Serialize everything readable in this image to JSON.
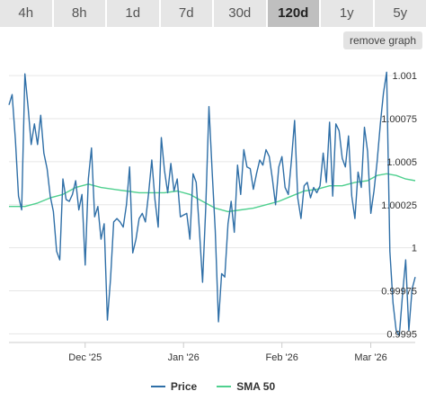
{
  "tabs": [
    {
      "label": "4h"
    },
    {
      "label": "8h"
    },
    {
      "label": "1d"
    },
    {
      "label": "7d"
    },
    {
      "label": "30d"
    },
    {
      "label": "120d",
      "active": true
    },
    {
      "label": "1y"
    },
    {
      "label": "5y"
    }
  ],
  "remove_graph_label": "remove graph",
  "colors": {
    "price": "#2f6fa7",
    "sma": "#4fd08f",
    "grid": "#e6e6e6",
    "axis": "#cccccc",
    "tab_active": "#bfbfbf"
  },
  "chart_data": {
    "type": "line",
    "title": "",
    "xlabel": "",
    "ylabel": "",
    "ylim": [
      0.99945,
      1.0011
    ],
    "y_ticks": [
      {
        "value": 0.9995,
        "label": "0.9995"
      },
      {
        "value": 0.99975,
        "label": "0.99975"
      },
      {
        "value": 1.0,
        "label": "1"
      },
      {
        "value": 1.00025,
        "label": "1.00025"
      },
      {
        "value": 1.0005,
        "label": "1.0005"
      },
      {
        "value": 1.00075,
        "label": "1.00075"
      },
      {
        "value": 1.001,
        "label": "1.001"
      }
    ],
    "x_range": [
      "2025-11-07",
      "2026-03-15"
    ],
    "x_ticks": [
      {
        "date": "2025-12-01",
        "label": "Dec '25"
      },
      {
        "date": "2026-01-01",
        "label": "Jan '26"
      },
      {
        "date": "2026-02-01",
        "label": "Feb '26"
      },
      {
        "date": "2026-03-01",
        "label": "Mar '26"
      }
    ],
    "grid": true,
    "legend_position": "bottom-center",
    "series": [
      {
        "name": "Price",
        "points": [
          [
            "2025-11-07",
            1.00083
          ],
          [
            "2025-11-08",
            1.00089
          ],
          [
            "2025-11-09",
            1.00063
          ],
          [
            "2025-11-10",
            1.0003
          ],
          [
            "2025-11-11",
            1.00022
          ],
          [
            "2025-11-12",
            1.00101
          ],
          [
            "2025-11-13",
            1.00082
          ],
          [
            "2025-11-14",
            1.0006
          ],
          [
            "2025-11-15",
            1.00072
          ],
          [
            "2025-11-16",
            1.0006
          ],
          [
            "2025-11-17",
            1.00077
          ],
          [
            "2025-11-18",
            1.00055
          ],
          [
            "2025-11-19",
            1.00046
          ],
          [
            "2025-11-20",
            1.0003
          ],
          [
            "2025-11-21",
            1.00021
          ],
          [
            "2025-11-22",
            0.99998
          ],
          [
            "2025-11-23",
            0.99993
          ],
          [
            "2025-11-24",
            1.0004
          ],
          [
            "2025-11-25",
            1.00028
          ],
          [
            "2025-11-26",
            1.00027
          ],
          [
            "2025-11-27",
            1.00031
          ],
          [
            "2025-11-28",
            1.00039
          ],
          [
            "2025-11-29",
            1.00022
          ],
          [
            "2025-11-30",
            1.00031
          ],
          [
            "2025-12-01",
            0.9999
          ],
          [
            "2025-12-02",
            1.0004
          ],
          [
            "2025-12-03",
            1.00058
          ],
          [
            "2025-12-04",
            1.00018
          ],
          [
            "2025-12-05",
            1.00024
          ],
          [
            "2025-12-06",
            1.00005
          ],
          [
            "2025-12-07",
            1.00014
          ],
          [
            "2025-12-08",
            0.99958
          ],
          [
            "2025-12-09",
            0.99982
          ],
          [
            "2025-12-10",
            1.00015
          ],
          [
            "2025-12-11",
            1.00017
          ],
          [
            "2025-12-12",
            1.00015
          ],
          [
            "2025-12-13",
            1.00012
          ],
          [
            "2025-12-14",
            1.00025
          ],
          [
            "2025-12-15",
            1.00047
          ],
          [
            "2025-12-16",
            0.99997
          ],
          [
            "2025-12-17",
            1.00005
          ],
          [
            "2025-12-18",
            1.00017
          ],
          [
            "2025-12-19",
            1.0002
          ],
          [
            "2025-12-20",
            1.00015
          ],
          [
            "2025-12-21",
            1.00032
          ],
          [
            "2025-12-22",
            1.00051
          ],
          [
            "2025-12-23",
            1.00028
          ],
          [
            "2025-12-24",
            1.00012
          ],
          [
            "2025-12-25",
            1.00064
          ],
          [
            "2025-12-26",
            1.00045
          ],
          [
            "2025-12-27",
            1.00032
          ],
          [
            "2025-12-28",
            1.00049
          ],
          [
            "2025-12-29",
            1.00033
          ],
          [
            "2025-12-30",
            1.0004
          ],
          [
            "2025-12-31",
            1.00018
          ],
          [
            "2026-01-01",
            1.00019
          ],
          [
            "2026-01-02",
            1.0002
          ],
          [
            "2026-01-03",
            1.00005
          ],
          [
            "2026-01-04",
            1.00043
          ],
          [
            "2026-01-05",
            1.00038
          ],
          [
            "2026-01-06",
            1.0001
          ],
          [
            "2026-01-07",
            0.9998
          ],
          [
            "2026-01-08",
            1.00023
          ],
          [
            "2026-01-09",
            1.00082
          ],
          [
            "2026-01-10",
            1.00045
          ],
          [
            "2026-01-11",
            1.0001
          ],
          [
            "2026-01-12",
            0.99957
          ],
          [
            "2026-01-13",
            0.99985
          ],
          [
            "2026-01-14",
            0.99983
          ],
          [
            "2026-01-15",
            1.00014
          ],
          [
            "2026-01-16",
            1.00027
          ],
          [
            "2026-01-17",
            1.00009
          ],
          [
            "2026-01-18",
            1.00048
          ],
          [
            "2026-01-19",
            1.00031
          ],
          [
            "2026-01-20",
            1.00057
          ],
          [
            "2026-01-21",
            1.00047
          ],
          [
            "2026-01-22",
            1.00046
          ],
          [
            "2026-01-23",
            1.00034
          ],
          [
            "2026-01-24",
            1.00043
          ],
          [
            "2026-01-25",
            1.00051
          ],
          [
            "2026-01-26",
            1.00048
          ],
          [
            "2026-01-27",
            1.00057
          ],
          [
            "2026-01-28",
            1.00053
          ],
          [
            "2026-01-29",
            1.0004
          ],
          [
            "2026-01-30",
            1.00025
          ],
          [
            "2026-01-31",
            1.00047
          ],
          [
            "2026-02-01",
            1.00053
          ],
          [
            "2026-02-02",
            1.00035
          ],
          [
            "2026-02-03",
            1.00031
          ],
          [
            "2026-02-04",
            1.00051
          ],
          [
            "2026-02-05",
            1.00074
          ],
          [
            "2026-02-06",
            1.00029
          ],
          [
            "2026-02-07",
            1.00017
          ],
          [
            "2026-02-08",
            1.00036
          ],
          [
            "2026-02-09",
            1.00038
          ],
          [
            "2026-02-10",
            1.00029
          ],
          [
            "2026-02-11",
            1.00035
          ],
          [
            "2026-02-12",
            1.00032
          ],
          [
            "2026-02-13",
            1.00036
          ],
          [
            "2026-02-14",
            1.00055
          ],
          [
            "2026-02-15",
            1.00038
          ],
          [
            "2026-02-16",
            1.00073
          ],
          [
            "2026-02-17",
            1.0003
          ],
          [
            "2026-02-18",
            1.00072
          ],
          [
            "2026-02-19",
            1.00068
          ],
          [
            "2026-02-20",
            1.00052
          ],
          [
            "2026-02-21",
            1.00047
          ],
          [
            "2026-02-22",
            1.00065
          ],
          [
            "2026-02-23",
            1.0003
          ],
          [
            "2026-02-24",
            1.00017
          ],
          [
            "2026-02-25",
            1.00044
          ],
          [
            "2026-02-26",
            1.00035
          ],
          [
            "2026-02-27",
            1.0007
          ],
          [
            "2026-02-28",
            1.00056
          ],
          [
            "2026-03-01",
            1.0002
          ],
          [
            "2026-03-02",
            1.00033
          ],
          [
            "2026-03-03",
            1.0005
          ],
          [
            "2026-03-04",
            1.00072
          ],
          [
            "2026-03-05",
            1.0009
          ],
          [
            "2026-03-06",
            1.00102
          ],
          [
            "2026-03-07",
            0.99998
          ],
          [
            "2026-03-08",
            0.99968
          ],
          [
            "2026-03-09",
            0.99952
          ],
          [
            "2026-03-10",
            0.99949
          ],
          [
            "2026-03-11",
            0.99973
          ],
          [
            "2026-03-12",
            0.99993
          ],
          [
            "2026-03-13",
            0.99952
          ],
          [
            "2026-03-14",
            0.99976
          ],
          [
            "2026-03-15",
            0.99983
          ]
        ]
      },
      {
        "name": "SMA 50",
        "points": [
          [
            "2025-11-07",
            1.00024
          ],
          [
            "2025-11-12",
            1.00024
          ],
          [
            "2025-11-16",
            1.00026
          ],
          [
            "2025-11-20",
            1.00029
          ],
          [
            "2025-11-24",
            1.00031
          ],
          [
            "2025-11-28",
            1.00035
          ],
          [
            "2025-12-02",
            1.00037
          ],
          [
            "2025-12-06",
            1.00035
          ],
          [
            "2025-12-10",
            1.00034
          ],
          [
            "2025-12-14",
            1.00033
          ],
          [
            "2025-12-18",
            1.00032
          ],
          [
            "2025-12-22",
            1.00032
          ],
          [
            "2025-12-26",
            1.00032
          ],
          [
            "2025-12-30",
            1.00033
          ],
          [
            "2026-01-03",
            1.00031
          ],
          [
            "2026-01-07",
            1.00027
          ],
          [
            "2026-01-11",
            1.00023
          ],
          [
            "2026-01-15",
            1.00021
          ],
          [
            "2026-01-19",
            1.00022
          ],
          [
            "2026-01-23",
            1.00023
          ],
          [
            "2026-01-27",
            1.00025
          ],
          [
            "2026-01-31",
            1.00027
          ],
          [
            "2026-02-04",
            1.0003
          ],
          [
            "2026-02-08",
            1.00033
          ],
          [
            "2026-02-12",
            1.00034
          ],
          [
            "2026-02-16",
            1.00036
          ],
          [
            "2026-02-20",
            1.00036
          ],
          [
            "2026-02-24",
            1.00038
          ],
          [
            "2026-02-28",
            1.00039
          ],
          [
            "2026-03-03",
            1.00042
          ],
          [
            "2026-03-06",
            1.00043
          ],
          [
            "2026-03-09",
            1.00042
          ],
          [
            "2026-03-12",
            1.0004
          ],
          [
            "2026-03-15",
            1.00039
          ]
        ]
      }
    ]
  }
}
